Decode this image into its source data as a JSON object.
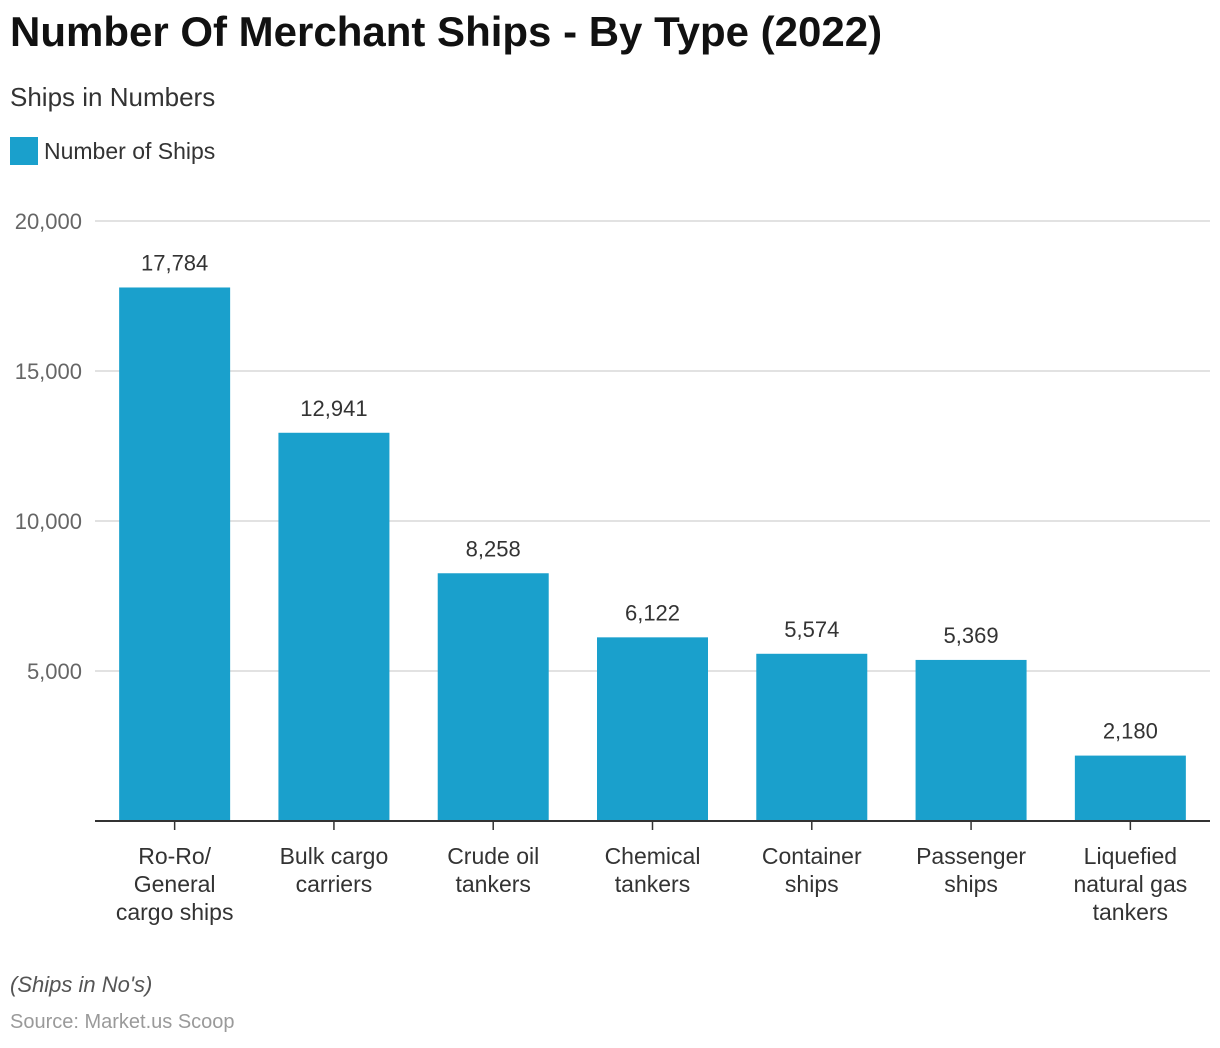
{
  "chart_data": {
    "type": "bar",
    "title": "Number Of Merchant Ships - By Type (2022)",
    "subtitle": "Ships in Numbers",
    "categories": [
      [
        "Ro-Ro/",
        "General",
        "cargo ships"
      ],
      [
        "Bulk cargo",
        "carriers"
      ],
      [
        "Crude oil",
        "tankers"
      ],
      [
        "Chemical",
        "tankers"
      ],
      [
        "Container",
        "ships"
      ],
      [
        "Passenger",
        "ships"
      ],
      [
        "Liquefied",
        "natural gas",
        "tankers"
      ]
    ],
    "series": [
      {
        "name": "Number of Ships",
        "values": [
          17784,
          12941,
          8258,
          6122,
          5574,
          5369,
          2180
        ],
        "labels": [
          "17,784",
          "12,941",
          "8,258",
          "6,122",
          "5,574",
          "5,369",
          "2,180"
        ],
        "color": "#1aa0cc"
      }
    ],
    "ylim": [
      0,
      20000
    ],
    "yticks": [
      5000,
      10000,
      15000,
      20000
    ],
    "ytick_labels": [
      "5,000",
      "10,000",
      "15,000",
      "20,000"
    ],
    "grid": true,
    "legend_position": "top-left",
    "xlabel": "",
    "ylabel": ""
  },
  "legend": {
    "label": "Number of Ships",
    "color": "#1aa0cc"
  },
  "footer": {
    "note": "(Ships in No's)",
    "source": "Source: Market.us Scoop"
  }
}
